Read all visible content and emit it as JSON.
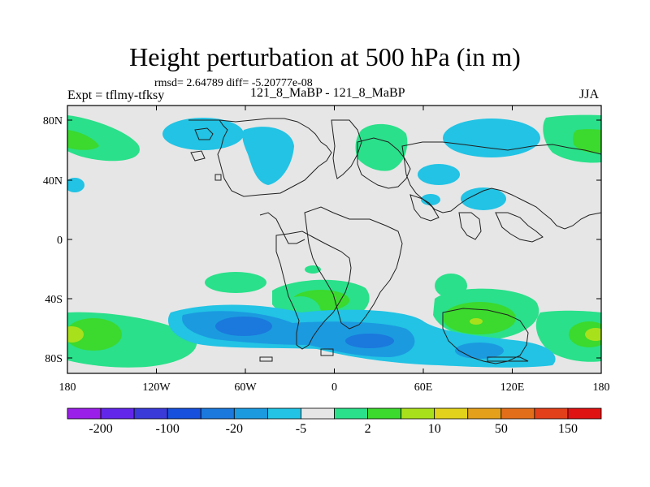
{
  "title": "Height perturbation at 500 hPa (in m)",
  "stats": "rmsd= 2.64789 diff= -5.20777e-08",
  "left_label": "Expt = tflmy-tfksy",
  "center_label": "121_8_MaBP - 121_8_MaBP",
  "right_label": "JJA",
  "lat_ticks": [
    "80N",
    "40N",
    "0",
    "40S",
    "80S"
  ],
  "lon_ticks": [
    "180",
    "120W",
    "60W",
    "0",
    "60E",
    "120E",
    "180"
  ],
  "colorbar_labels": [
    "-200",
    "-100",
    "-20",
    "-5",
    "2",
    "10",
    "50",
    "150"
  ],
  "colorbar_colors": [
    "#9a1fe8",
    "#6226ea",
    "#3a3ad9",
    "#1650dc",
    "#1b78dc",
    "#1b9ae0",
    "#22c3e4",
    "#e6e6e6",
    "#2ae08a",
    "#3cd92e",
    "#a9e01c",
    "#e2d21c",
    "#e4a01a",
    "#e36e19",
    "#e2401a",
    "#e01313"
  ],
  "colors": {
    "ocean": "#e6e6e6",
    "pos_light": "#2ae08a",
    "pos_mid": "#3cd92e",
    "pos_strong": "#a9e01c",
    "neg_light": "#22c3e4",
    "neg_mid": "#1b9ae0",
    "neg_strong": "#1b78dc",
    "coast": "#202020"
  }
}
